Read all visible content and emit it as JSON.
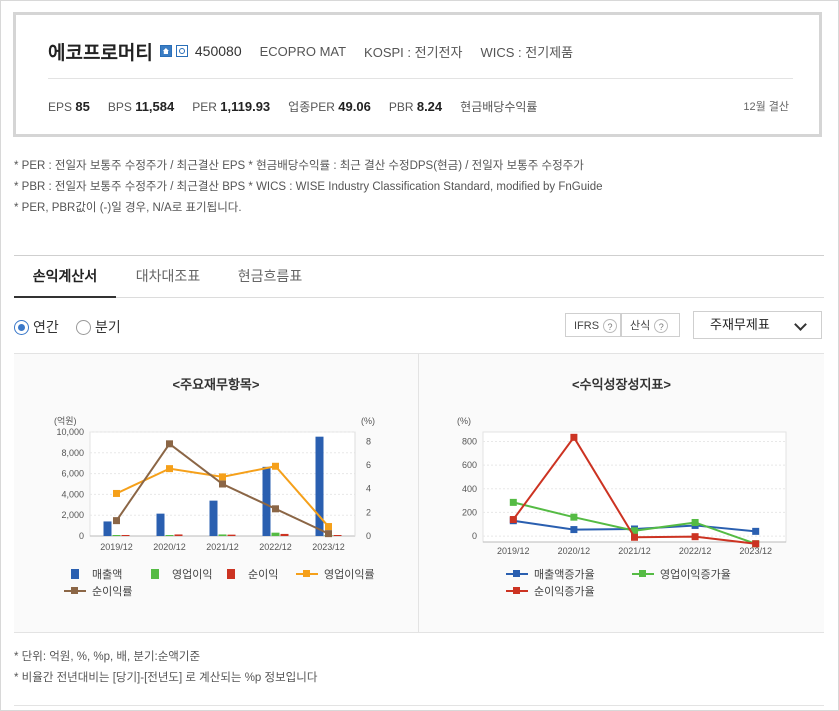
{
  "company": {
    "name": "에코프로머티",
    "code": "450080",
    "english_name": "ECOPRO MAT",
    "market": "KOSPI : 전기전자",
    "wics": "WICS : 전기제품",
    "icons": [
      "home-icon",
      "web-icon"
    ]
  },
  "metrics": [
    {
      "label": "EPS",
      "value": "85"
    },
    {
      "label": "BPS",
      "value": "11,584"
    },
    {
      "label": "PER",
      "value": "1,119.93"
    },
    {
      "label": "업종PER",
      "value": "49.06"
    },
    {
      "label": "PBR",
      "value": "8.24"
    },
    {
      "label": "현금배당수익률",
      "value": ""
    }
  ],
  "settlement": "12월 결산",
  "notes": [
    "* PER : 전일자 보통주 수정주가 / 최근결산 EPS * 현금배당수익률 : 최근 결산 수정DPS(현금) / 전일자 보통주 수정주가",
    "* PBR : 전일자 보통주 수정주가 / 최근결산 BPS * WICS : WISE Industry Classification Standard, modified by FnGuide",
    "* PER, PBR값이 (-)일 경우, N/A로 표기됩니다."
  ],
  "tabs": [
    {
      "label": "손익계산서",
      "active": true
    },
    {
      "label": "대차대조표",
      "active": false
    },
    {
      "label": "현금흐름표",
      "active": false
    }
  ],
  "controls": {
    "period_options": [
      {
        "label": "연간",
        "selected": true
      },
      {
        "label": "분기",
        "selected": false
      }
    ],
    "ifrs_label": "IFRS",
    "calc_label": "산식",
    "help_glyph": "?",
    "statement_select": "주재무제표"
  },
  "colors": {
    "bar_blue": "#2a5fb0",
    "bar_green": "#55bb44",
    "bar_red": "#cc3322",
    "line_orange": "#f5a01a",
    "line_brown": "#8b6646",
    "growth_blue": "#2a5fb0",
    "growth_green": "#55bb44",
    "growth_red": "#cc3322"
  },
  "chart_data": [
    {
      "type": "bar",
      "title": "<주요재무항목>",
      "categories": [
        "2019/12",
        "2020/12",
        "2021/12",
        "2022/12",
        "2023/12"
      ],
      "y_left": {
        "unit": "(억원)",
        "ylim": [
          0,
          10000
        ],
        "ticks": [
          "0",
          "2,000",
          "4,000",
          "6,000",
          "8,000",
          "10,000"
        ]
      },
      "y_right": {
        "unit": "(%)",
        "ylim": [
          0,
          8.8
        ],
        "ticks": [
          "0",
          "2",
          "4",
          "6",
          "8"
        ]
      },
      "series": [
        {
          "name": "매출액",
          "kind": "bar",
          "axis": "left",
          "values": [
            1400,
            2150,
            3400,
            6650,
            9550
          ]
        },
        {
          "name": "영업이익",
          "kind": "bar",
          "axis": "left",
          "values": [
            20,
            80,
            150,
            320,
            50
          ]
        },
        {
          "name": "순이익",
          "kind": "bar",
          "axis": "left",
          "values": [
            10,
            150,
            130,
            200,
            30
          ]
        },
        {
          "name": "영업이익률",
          "kind": "line",
          "axis": "right",
          "values": [
            3.6,
            5.7,
            5.0,
            5.9,
            0.8
          ]
        },
        {
          "name": "순이익률",
          "kind": "line",
          "axis": "right",
          "values": [
            1.3,
            7.8,
            4.4,
            2.3,
            0.2
          ]
        }
      ],
      "grid": true,
      "legend": "bottom"
    },
    {
      "type": "line",
      "title": "<수익성장성지표>",
      "categories": [
        "2019/12",
        "2020/12",
        "2021/12",
        "2022/12",
        "2023/12"
      ],
      "y": {
        "unit": "(%)",
        "ylim": [
          -50,
          880
        ],
        "ticks": [
          "0",
          "200",
          "400",
          "600",
          "800"
        ]
      },
      "series": [
        {
          "name": "매출액증가율",
          "values": [
            130,
            55,
            60,
            90,
            40
          ]
        },
        {
          "name": "영업이익증가율",
          "values": [
            285,
            160,
            45,
            115,
            -65
          ]
        },
        {
          "name": "순이익증가율",
          "values": [
            140,
            835,
            -10,
            -5,
            -65
          ]
        }
      ],
      "grid": true,
      "legend": "bottom"
    }
  ],
  "footer": [
    "* 단위: 억원, %, %p, 배, 분기:순액기준",
    "* 비율간 전년대비는 [당기]-[전년도] 로 계산되는 %p 정보입니다"
  ]
}
